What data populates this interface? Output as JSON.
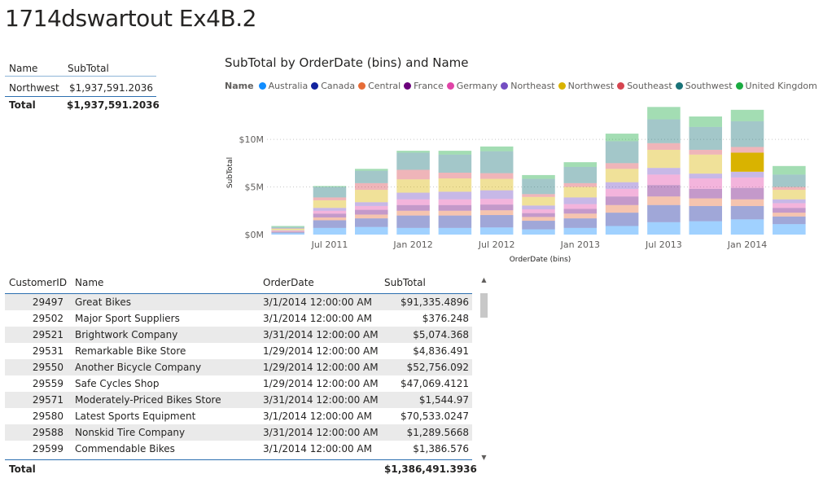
{
  "page": {
    "title": "1714dswartout Ex4B.2"
  },
  "summary_table": {
    "headers": [
      "Name",
      "SubTotal"
    ],
    "rows": [
      {
        "name": "Northwest",
        "subtotal": "$1,937,591.2036"
      }
    ],
    "total": {
      "label": "Total",
      "value": "$1,937,591.2036"
    }
  },
  "chart_data": {
    "type": "bar",
    "stacked": true,
    "title": "SubTotal by OrderDate (bins) and Name",
    "xlabel": "OrderDate (bins)",
    "ylabel": "SubTotal",
    "legend_title": "Name",
    "legend_position": "top-left",
    "yticks": [
      "$0M",
      "$5M",
      "$10M"
    ],
    "ytick_values": [
      0,
      5,
      10
    ],
    "ylim": [
      0,
      13
    ],
    "xticks": [
      "Jul 2011",
      "Jan 2012",
      "Jul 2012",
      "Jan 2013",
      "Jul 2013",
      "Jan 2014"
    ],
    "xtick_bin_index": [
      1,
      3,
      5,
      7,
      9,
      11
    ],
    "grid": true,
    "highlighted_series": "Northwest",
    "series": [
      {
        "name": "Australia",
        "color": "#118DFF",
        "values": [
          0.15,
          0.7,
          0.8,
          0.7,
          0.7,
          0.75,
          0.55,
          0.7,
          0.9,
          1.3,
          1.4,
          1.6,
          1.1
        ]
      },
      {
        "name": "Canada",
        "color": "#12239E",
        "values": [
          0.1,
          0.8,
          0.9,
          1.3,
          1.3,
          1.3,
          0.9,
          1.0,
          1.4,
          1.8,
          1.6,
          1.4,
          0.8
        ]
      },
      {
        "name": "Central",
        "color": "#E66C37",
        "values": [
          0.05,
          0.3,
          0.4,
          0.5,
          0.5,
          0.5,
          0.4,
          0.5,
          0.8,
          0.9,
          0.8,
          0.7,
          0.4
        ]
      },
      {
        "name": "France",
        "color": "#6B007B",
        "values": [
          0.05,
          0.4,
          0.5,
          0.6,
          0.6,
          0.6,
          0.4,
          0.5,
          0.9,
          1.2,
          1.0,
          1.2,
          0.5
        ]
      },
      {
        "name": "Germany",
        "color": "#E044A7",
        "values": [
          0.05,
          0.3,
          0.4,
          0.6,
          0.6,
          0.6,
          0.4,
          0.5,
          0.8,
          1.1,
          1.1,
          1.1,
          0.5
        ]
      },
      {
        "name": "Northeast",
        "color": "#744EC2",
        "values": [
          0.05,
          0.3,
          0.4,
          0.7,
          0.8,
          0.9,
          0.4,
          0.7,
          0.7,
          0.7,
          0.5,
          0.6,
          0.4
        ]
      },
      {
        "name": "Northwest",
        "color": "#D9B300",
        "values": [
          0.15,
          0.8,
          1.3,
          1.4,
          1.4,
          1.2,
          0.9,
          1.1,
          1.4,
          1.9,
          2.0,
          2.0,
          1.0
        ]
      },
      {
        "name": "Southeast",
        "color": "#D64550",
        "values": [
          0.05,
          0.3,
          0.7,
          1.0,
          0.6,
          0.6,
          0.3,
          0.4,
          0.6,
          0.7,
          0.5,
          0.6,
          0.3
        ]
      },
      {
        "name": "Southwest",
        "color": "#197278",
        "values": [
          0.15,
          1.1,
          1.3,
          1.8,
          1.9,
          2.3,
          1.6,
          1.7,
          2.3,
          2.5,
          2.4,
          2.7,
          1.3
        ]
      },
      {
        "name": "United Kingdom",
        "color": "#1AAB40",
        "values": [
          0.1,
          0.1,
          0.2,
          0.2,
          0.4,
          0.5,
          0.4,
          0.5,
          0.8,
          1.3,
          1.1,
          1.2,
          0.9
        ]
      }
    ]
  },
  "main_table": {
    "headers": {
      "customer_id": "CustomerID",
      "name": "Name",
      "order_date": "OrderDate",
      "subtotal": "SubTotal"
    },
    "rows": [
      {
        "customer_id": "29497",
        "name": "Great Bikes",
        "order_date": "3/1/2014 12:00:00 AM",
        "subtotal": "$91,335.4896"
      },
      {
        "customer_id": "29502",
        "name": "Major Sport Suppliers",
        "order_date": "3/1/2014 12:00:00 AM",
        "subtotal": "$376.248"
      },
      {
        "customer_id": "29521",
        "name": "Brightwork Company",
        "order_date": "3/31/2014 12:00:00 AM",
        "subtotal": "$5,074.368"
      },
      {
        "customer_id": "29531",
        "name": "Remarkable Bike Store",
        "order_date": "1/29/2014 12:00:00 AM",
        "subtotal": "$4,836.491"
      },
      {
        "customer_id": "29550",
        "name": "Another Bicycle Company",
        "order_date": "1/29/2014 12:00:00 AM",
        "subtotal": "$52,756.092"
      },
      {
        "customer_id": "29559",
        "name": "Safe Cycles Shop",
        "order_date": "1/29/2014 12:00:00 AM",
        "subtotal": "$47,069.4121"
      },
      {
        "customer_id": "29571",
        "name": "Moderately-Priced Bikes Store",
        "order_date": "3/31/2014 12:00:00 AM",
        "subtotal": "$1,544.97"
      },
      {
        "customer_id": "29580",
        "name": "Latest Sports Equipment",
        "order_date": "3/1/2014 12:00:00 AM",
        "subtotal": "$70,533.0247"
      },
      {
        "customer_id": "29588",
        "name": "Nonskid Tire Company",
        "order_date": "3/31/2014 12:00:00 AM",
        "subtotal": "$1,289.5668"
      },
      {
        "customer_id": "29599",
        "name": "Commendable Bikes",
        "order_date": "3/1/2014 12:00:00 AM",
        "subtotal": "$1,386.576"
      }
    ],
    "total": {
      "label": "Total",
      "value": "$1,386,491.3936"
    }
  },
  "scrollbar": {
    "up_icon": "chevron-up-icon",
    "down_icon": "chevron-down-icon"
  }
}
